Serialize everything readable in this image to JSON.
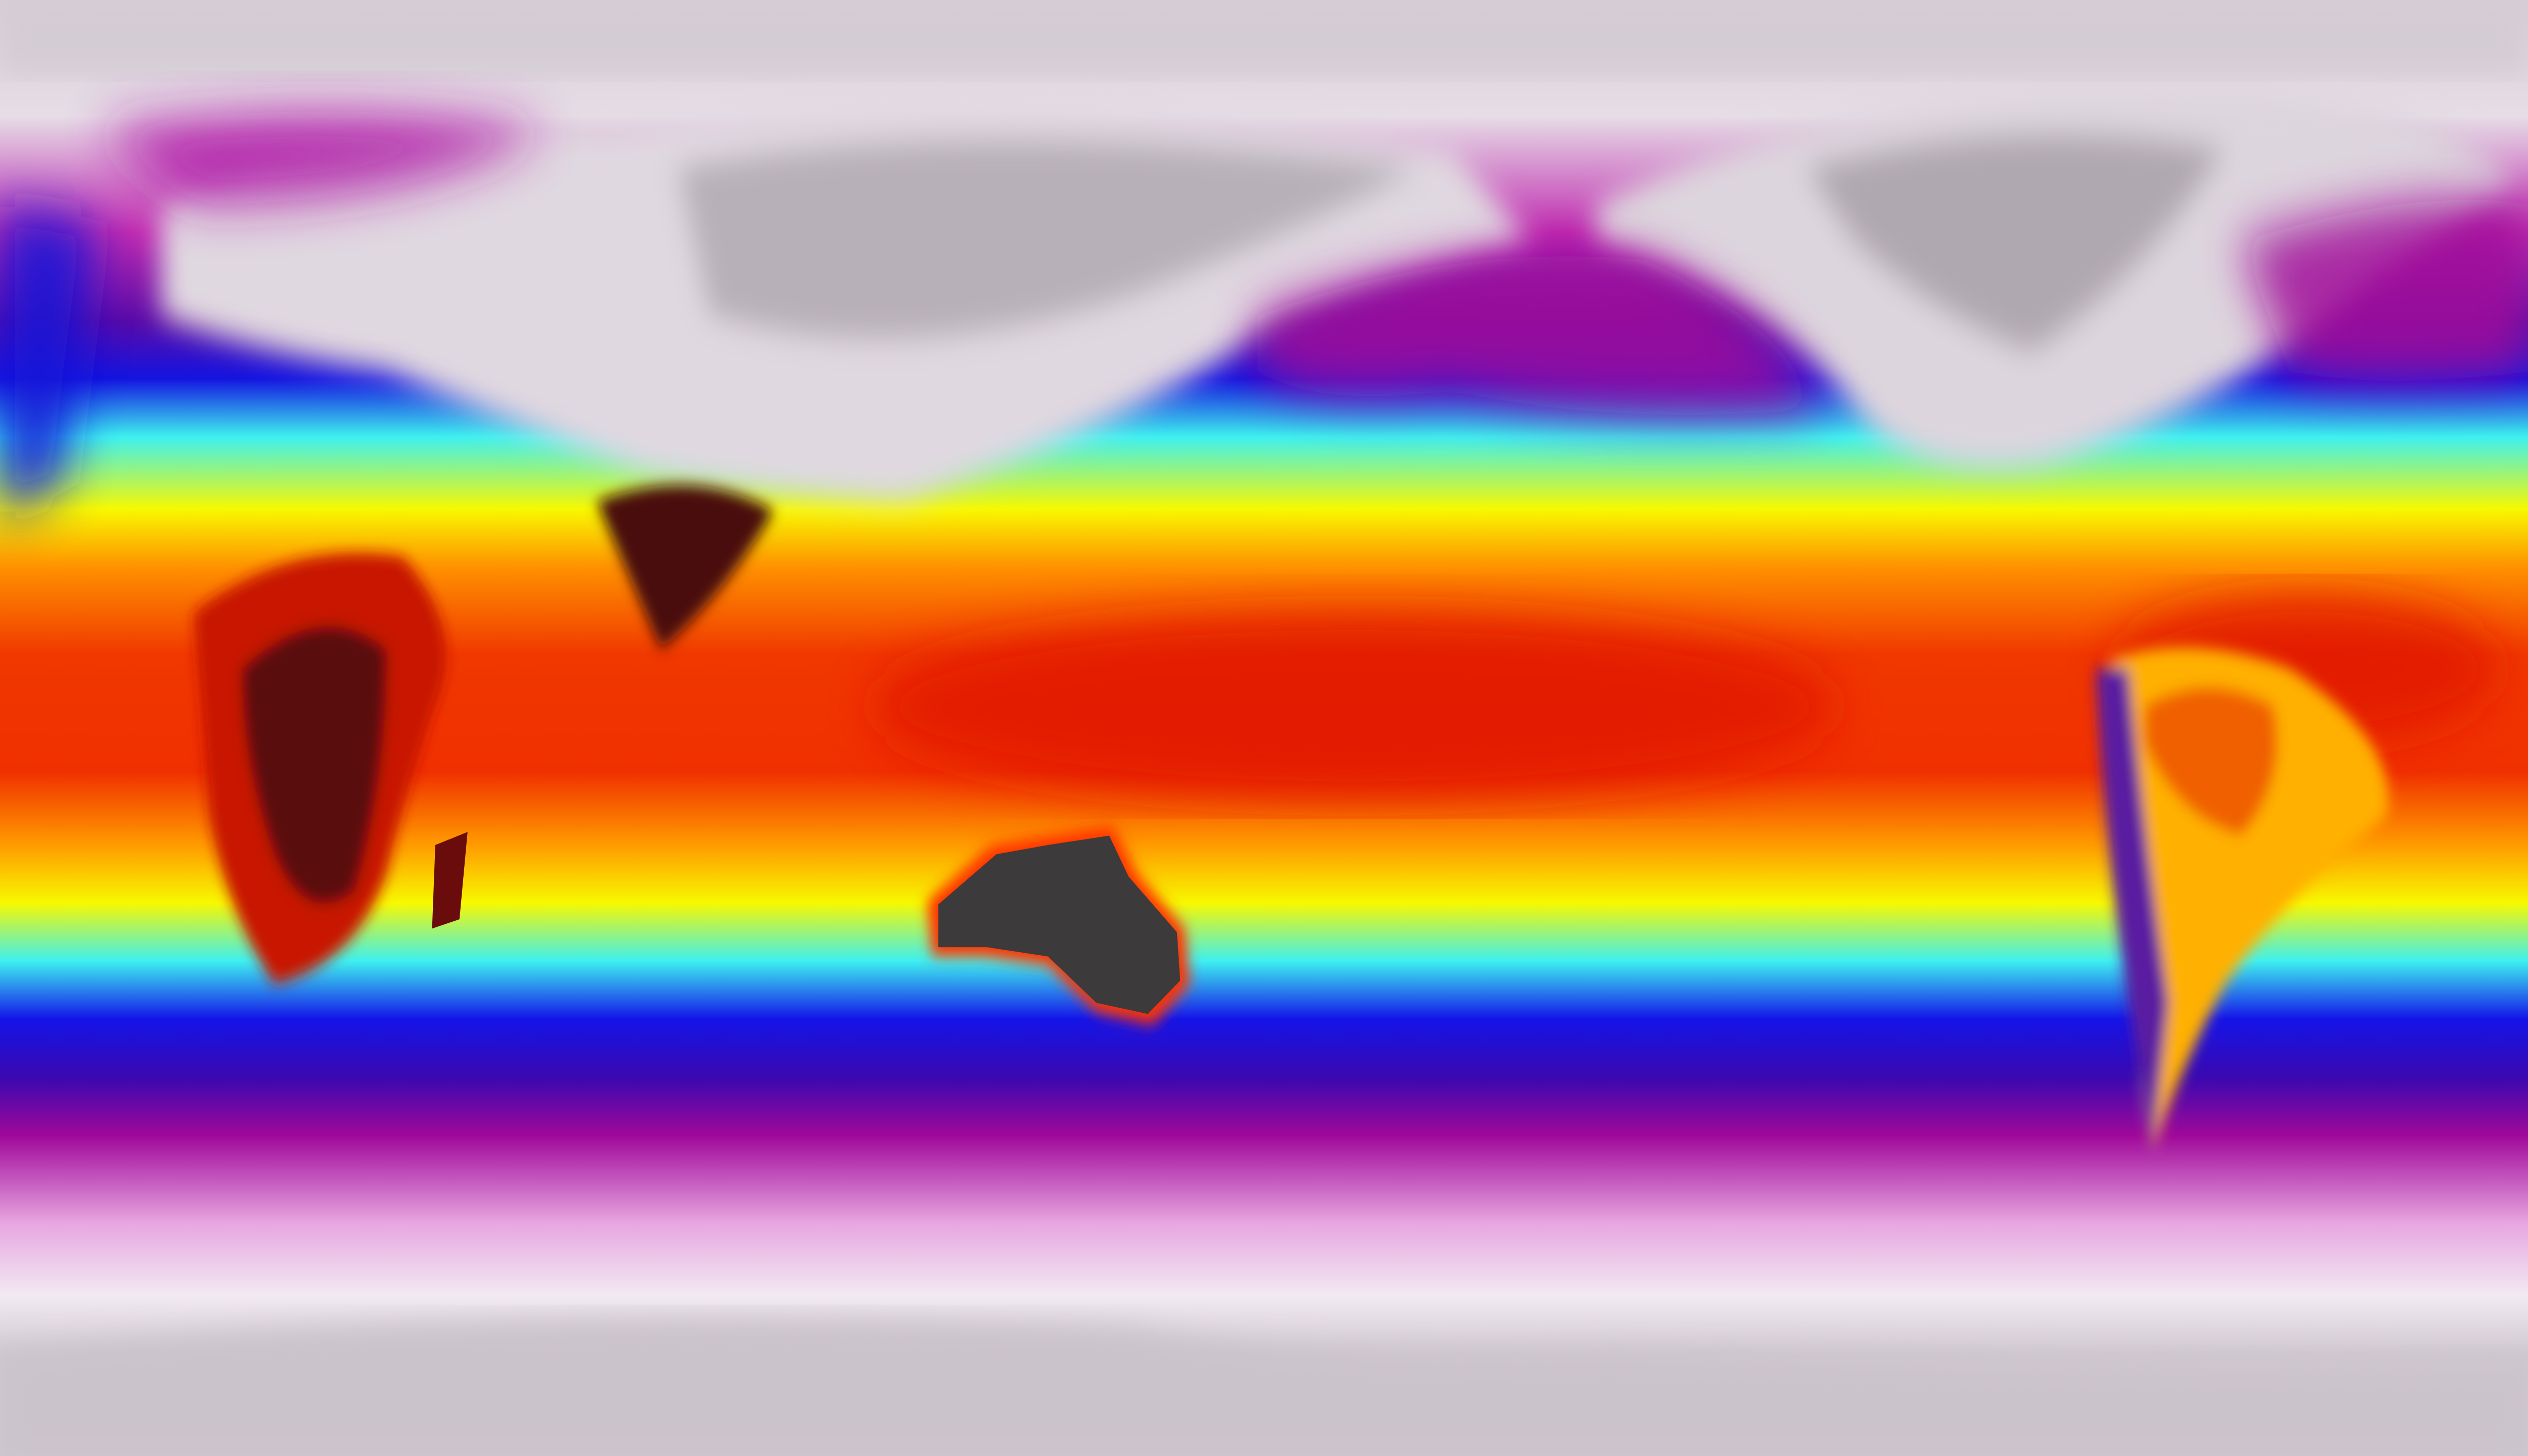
{
  "map": {
    "projection": "equirectangular",
    "colors": {
      "polar_grey": "#d6cdd6",
      "snow_white": "#f2eaf2",
      "pink": "#e7a6e0",
      "magenta": "#a8079a",
      "purple": "#5a0aa8",
      "blue": "#1010e8",
      "cyan": "#3ef0f0",
      "yellow": "#f8f800",
      "orange": "#ff9000",
      "red": "#f02800",
      "dark_red": "#5a0a0a",
      "land_dark_grey": "#3a3838"
    }
  }
}
